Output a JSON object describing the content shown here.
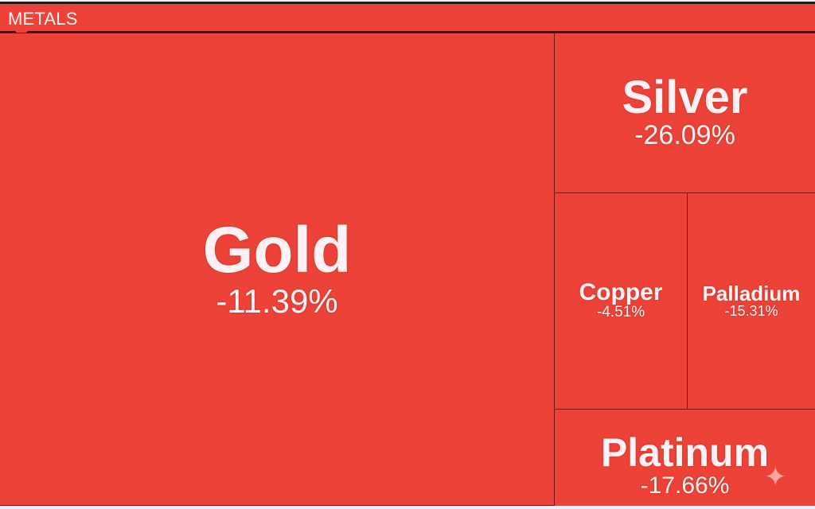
{
  "header": {
    "title": "METALS"
  },
  "chart_data": {
    "type": "treemap",
    "group": "METALS",
    "items": [
      {
        "name": "Gold",
        "change": "-11.39%",
        "value": -11.39
      },
      {
        "name": "Silver",
        "change": "-26.09%",
        "value": -26.09
      },
      {
        "name": "Copper",
        "change": "-4.51%",
        "value": -4.51
      },
      {
        "name": "Palladium",
        "change": "-15.31%",
        "value": -15.31
      },
      {
        "name": "Platinum",
        "change": "-17.66%",
        "value": -17.66
      }
    ],
    "colors": {
      "negative": "#ec4238",
      "border": "#7a1018"
    }
  }
}
